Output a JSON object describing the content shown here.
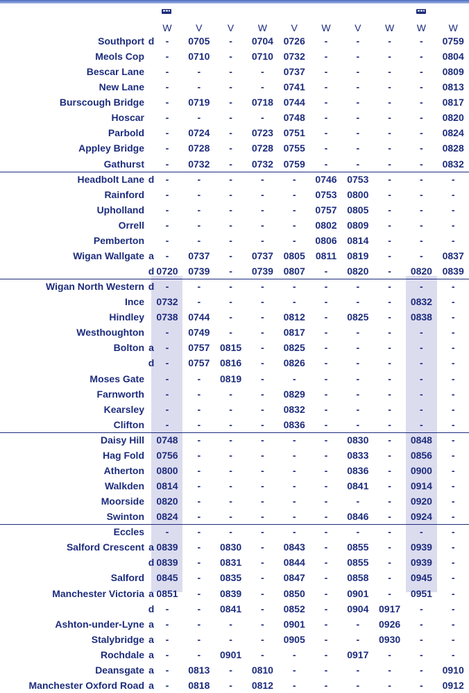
{
  "header": {
    "days": [
      "W",
      "V",
      "V",
      "W",
      "V",
      "W",
      "V",
      "W",
      "W",
      "W"
    ]
  },
  "rows": [
    {
      "station": "Southport",
      "ad": "d",
      "times": [
        "-",
        "0705",
        "-",
        "0704",
        "0726",
        "-",
        "-",
        "-",
        "-",
        "0759"
      ]
    },
    {
      "station": "Meols Cop",
      "times": [
        "-",
        "0710",
        "-",
        "0710",
        "0732",
        "-",
        "-",
        "-",
        "-",
        "0804"
      ]
    },
    {
      "station": "Bescar Lane",
      "times": [
        "-",
        "-",
        "-",
        "-",
        "0737",
        "-",
        "-",
        "-",
        "-",
        "0809"
      ]
    },
    {
      "station": "New Lane",
      "times": [
        "-",
        "-",
        "-",
        "-",
        "0741",
        "-",
        "-",
        "-",
        "-",
        "0813"
      ]
    },
    {
      "station": "Burscough Bridge",
      "times": [
        "-",
        "0719",
        "-",
        "0718",
        "0744",
        "-",
        "-",
        "-",
        "-",
        "0817"
      ]
    },
    {
      "station": "Hoscar",
      "times": [
        "-",
        "-",
        "-",
        "-",
        "0748",
        "-",
        "-",
        "-",
        "-",
        "0820"
      ]
    },
    {
      "station": "Parbold",
      "times": [
        "-",
        "0724",
        "-",
        "0723",
        "0751",
        "-",
        "-",
        "-",
        "-",
        "0824"
      ]
    },
    {
      "station": "Appley Bridge",
      "times": [
        "-",
        "0728",
        "-",
        "0728",
        "0755",
        "-",
        "-",
        "-",
        "-",
        "0828"
      ]
    },
    {
      "station": "Gathurst",
      "times": [
        "-",
        "0732",
        "-",
        "0732",
        "0759",
        "-",
        "-",
        "-",
        "-",
        "0832"
      ]
    },
    {
      "station": "Headbolt Lane",
      "ad": "d",
      "times": [
        "-",
        "-",
        "-",
        "-",
        "-",
        "0746",
        "0753",
        "-",
        "-",
        "-"
      ]
    },
    {
      "station": "Rainford",
      "times": [
        "-",
        "-",
        "-",
        "-",
        "-",
        "0753",
        "0800",
        "-",
        "-",
        "-"
      ]
    },
    {
      "station": "Upholland",
      "times": [
        "-",
        "-",
        "-",
        "-",
        "-",
        "0757",
        "0805",
        "-",
        "-",
        "-"
      ]
    },
    {
      "station": "Orrell",
      "times": [
        "-",
        "-",
        "-",
        "-",
        "-",
        "0802",
        "0809",
        "-",
        "-",
        "-"
      ]
    },
    {
      "station": "Pemberton",
      "times": [
        "-",
        "-",
        "-",
        "-",
        "-",
        "0806",
        "0814",
        "-",
        "-",
        "-"
      ]
    },
    {
      "station": "Wigan Wallgate",
      "ad": "a",
      "times": [
        "-",
        "0737",
        "-",
        "0737",
        "0805",
        "0811",
        "0819",
        "-",
        "-",
        "0837"
      ]
    },
    {
      "ad": "d",
      "times": [
        "0720",
        "0739",
        "-",
        "0739",
        "0807",
        "-",
        "0820",
        "-",
        "0820",
        "0839"
      ]
    },
    {
      "station": "Wigan North Western",
      "ad": "d",
      "times": [
        "-",
        "-",
        "-",
        "-",
        "-",
        "-",
        "-",
        "-",
        "-",
        "-"
      ]
    },
    {
      "station": "Ince",
      "times": [
        "0732",
        "-",
        "-",
        "-",
        "-",
        "-",
        "-",
        "-",
        "0832",
        "-"
      ]
    },
    {
      "station": "Hindley",
      "times": [
        "0738",
        "0744",
        "-",
        "-",
        "0812",
        "-",
        "0825",
        "-",
        "0838",
        "-"
      ]
    },
    {
      "station": "Westhoughton",
      "times": [
        "-",
        "0749",
        "-",
        "-",
        "0817",
        "-",
        "-",
        "-",
        "-",
        "-"
      ]
    },
    {
      "station": "Bolton",
      "ad": "a",
      "times": [
        "-",
        "0757",
        "0815",
        "-",
        "0825",
        "-",
        "-",
        "-",
        "-",
        "-"
      ]
    },
    {
      "ad": "d",
      "times": [
        "-",
        "0757",
        "0816",
        "-",
        "0826",
        "-",
        "-",
        "-",
        "-",
        "-"
      ]
    },
    {
      "station": "Moses Gate",
      "times": [
        "-",
        "-",
        "0819",
        "-",
        "-",
        "-",
        "-",
        "-",
        "-",
        "-"
      ]
    },
    {
      "station": "Farnworth",
      "times": [
        "-",
        "-",
        "-",
        "-",
        "0829",
        "-",
        "-",
        "-",
        "-",
        "-"
      ]
    },
    {
      "station": "Kearsley",
      "times": [
        "-",
        "-",
        "-",
        "-",
        "0832",
        "-",
        "-",
        "-",
        "-",
        "-"
      ]
    },
    {
      "station": "Clifton",
      "times": [
        "-",
        "-",
        "-",
        "-",
        "0836",
        "-",
        "-",
        "-",
        "-",
        "-"
      ]
    },
    {
      "station": "Daisy Hill",
      "times": [
        "0748",
        "-",
        "-",
        "-",
        "-",
        "-",
        "0830",
        "-",
        "0848",
        "-"
      ]
    },
    {
      "station": "Hag Fold",
      "times": [
        "0756",
        "-",
        "-",
        "-",
        "-",
        "-",
        "0833",
        "-",
        "0856",
        "-"
      ]
    },
    {
      "station": "Atherton",
      "times": [
        "0800",
        "-",
        "-",
        "-",
        "-",
        "-",
        "0836",
        "-",
        "0900",
        "-"
      ]
    },
    {
      "station": "Walkden",
      "times": [
        "0814",
        "-",
        "-",
        "-",
        "-",
        "-",
        "0841",
        "-",
        "0914",
        "-"
      ]
    },
    {
      "station": "Moorside",
      "times": [
        "0820",
        "-",
        "-",
        "-",
        "-",
        "-",
        "-",
        "-",
        "0920",
        "-"
      ]
    },
    {
      "station": "Swinton",
      "times": [
        "0824",
        "-",
        "-",
        "-",
        "-",
        "-",
        "0846",
        "-",
        "0924",
        "-"
      ]
    },
    {
      "station": "Eccles",
      "times": [
        "-",
        "-",
        "-",
        "-",
        "-",
        "-",
        "-",
        "-",
        "-",
        "-"
      ]
    },
    {
      "station": "Salford Crescent",
      "ad": "a",
      "times": [
        "0839",
        "-",
        "0830",
        "-",
        "0843",
        "-",
        "0855",
        "-",
        "0939",
        "-"
      ]
    },
    {
      "ad": "d",
      "times": [
        "0839",
        "-",
        "0831",
        "-",
        "0844",
        "-",
        "0855",
        "-",
        "0939",
        "-"
      ]
    },
    {
      "station": "Salford",
      "times": [
        "0845",
        "-",
        "0835",
        "-",
        "0847",
        "-",
        "0858",
        "-",
        "0945",
        "-"
      ]
    },
    {
      "station": "Manchester Victoria",
      "ad": "a",
      "times": [
        "0851",
        "-",
        "0839",
        "-",
        "0850",
        "-",
        "0901",
        "-",
        "0951",
        "-"
      ]
    },
    {
      "ad": "d",
      "times": [
        "-",
        "-",
        "0841",
        "-",
        "0852",
        "-",
        "0904",
        "0917",
        "-",
        "-"
      ]
    },
    {
      "station": "Ashton-under-Lyne",
      "ad": "a",
      "times": [
        "-",
        "-",
        "-",
        "-",
        "0901",
        "-",
        "-",
        "0926",
        "-",
        "-"
      ]
    },
    {
      "station": "Stalybridge",
      "ad": "a",
      "times": [
        "-",
        "-",
        "-",
        "-",
        "0905",
        "-",
        "-",
        "0930",
        "-",
        "-"
      ]
    },
    {
      "station": "Rochdale",
      "ad": "a",
      "times": [
        "-",
        "-",
        "0901",
        "-",
        "-",
        "-",
        "0917",
        "-",
        "-",
        "-"
      ]
    },
    {
      "station": "Deansgate",
      "ad": "a",
      "times": [
        "-",
        "0813",
        "-",
        "0810",
        "-",
        "-",
        "-",
        "-",
        "-",
        "0910"
      ]
    },
    {
      "station": "Manchester Oxford Road",
      "ad": "a",
      "times": [
        "-",
        "0818",
        "-",
        "0812",
        "-",
        "-",
        "-",
        "-",
        "-",
        "0912"
      ]
    }
  ]
}
